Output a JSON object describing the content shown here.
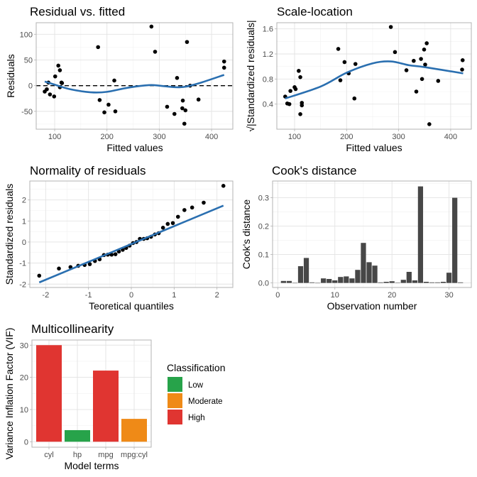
{
  "chart_data": [
    {
      "type": "scatter",
      "title": "Residual vs. fitted",
      "xlabel": "Fitted values",
      "ylabel": "Residuals",
      "xlim": [
        64.7,
        440.6
      ],
      "ylim": [
        -84.7,
        122.5
      ],
      "xticks": [
        100,
        200,
        300,
        400
      ],
      "yticks": [
        -50,
        0,
        50,
        100
      ],
      "grid": true,
      "reference_line": {
        "y": 0,
        "style": "dashed"
      },
      "points": [
        [
          81,
          -11.5
        ],
        [
          85,
          -7
        ],
        [
          88,
          6
        ],
        [
          91,
          -17
        ],
        [
          99,
          -21
        ],
        [
          101,
          18
        ],
        [
          107,
          39
        ],
        [
          110,
          30
        ],
        [
          110,
          -3
        ],
        [
          113,
          6
        ],
        [
          114,
          5
        ],
        [
          183,
          75
        ],
        [
          186,
          -28
        ],
        [
          195,
          -52
        ],
        [
          203,
          -37
        ],
        [
          214,
          10
        ],
        [
          216,
          -50
        ],
        [
          285,
          115
        ],
        [
          292,
          66
        ],
        [
          315,
          -41
        ],
        [
          329,
          -55
        ],
        [
          334,
          15
        ],
        [
          345,
          -29
        ],
        [
          344,
          -44
        ],
        [
          350,
          -48
        ],
        [
          348,
          -74
        ],
        [
          353,
          85
        ],
        [
          359,
          0
        ],
        [
          375,
          -27
        ],
        [
          424,
          35
        ],
        [
          424,
          47
        ]
      ],
      "smooth": [
        [
          81,
          8
        ],
        [
          100,
          2
        ],
        [
          130,
          -7
        ],
        [
          170,
          -13
        ],
        [
          200,
          -12
        ],
        [
          240,
          -4
        ],
        [
          280,
          1
        ],
        [
          300,
          0
        ],
        [
          330,
          -3
        ],
        [
          350,
          -2
        ],
        [
          380,
          6
        ],
        [
          424,
          21
        ]
      ],
      "colors": {
        "points": "#000000",
        "smooth": "#2a6fb0"
      }
    },
    {
      "type": "scatter",
      "title": "Scale-location",
      "xlabel": "Fitted values",
      "ylabel": "√|Standardized residuals|",
      "xlim": [
        65.9,
        439.7
      ],
      "ylim": [
        0.0,
        1.698
      ],
      "xticks": [
        100,
        200,
        300,
        400
      ],
      "yticks": [
        0.4,
        0.8,
        1.2,
        1.6
      ],
      "ytick_labels": [
        "0.4",
        "0.8",
        "1.2",
        "1.6"
      ],
      "grid": true,
      "points": [
        [
          82,
          0.52
        ],
        [
          86,
          0.41
        ],
        [
          90,
          0.4
        ],
        [
          92,
          0.61
        ],
        [
          100,
          0.67
        ],
        [
          102,
          0.64
        ],
        [
          108,
          0.93
        ],
        [
          111,
          0.83
        ],
        [
          111,
          0.24
        ],
        [
          114,
          0.42
        ],
        [
          114,
          0.38
        ],
        [
          184,
          1.28
        ],
        [
          188,
          0.78
        ],
        [
          196,
          1.07
        ],
        [
          204,
          0.89
        ],
        [
          215,
          0.49
        ],
        [
          217,
          1.04
        ],
        [
          285,
          1.63
        ],
        [
          293,
          1.23
        ],
        [
          315,
          0.94
        ],
        [
          329,
          1.09
        ],
        [
          334,
          0.6
        ],
        [
          343,
          1.12
        ],
        [
          345,
          0.8
        ],
        [
          349,
          1.27
        ],
        [
          351,
          1.03
        ],
        [
          354,
          1.37
        ],
        [
          359,
          0.08
        ],
        [
          376,
          0.77
        ],
        [
          423,
          1.1
        ],
        [
          422,
          0.95
        ]
      ],
      "smooth": [
        [
          82,
          0.49
        ],
        [
          150,
          0.68
        ],
        [
          200,
          0.9
        ],
        [
          250,
          1.05
        ],
        [
          285,
          1.08
        ],
        [
          320,
          1.02
        ],
        [
          350,
          0.99
        ],
        [
          424,
          0.89
        ]
      ],
      "colors": {
        "points": "#000000",
        "smooth": "#2a6fb0"
      }
    },
    {
      "type": "scatter",
      "title": "Normality of residuals",
      "xlabel": "Teoretical quantiles",
      "ylabel": "Standardized residuals",
      "xlim": [
        -2.37,
        2.37
      ],
      "ylim": [
        -2.16,
        2.9
      ],
      "xticks": [
        -2,
        -1,
        0,
        1,
        2
      ],
      "yticks": [
        -2,
        -1,
        0,
        1,
        2
      ],
      "grid": true,
      "points": [
        [
          -2.15,
          -1.6
        ],
        [
          -1.69,
          -1.26
        ],
        [
          -1.42,
          -1.19
        ],
        [
          -1.24,
          -1.13
        ],
        [
          -1.09,
          -1.09
        ],
        [
          -0.97,
          -1.05
        ],
        [
          -0.85,
          -0.9
        ],
        [
          -0.74,
          -0.82
        ],
        [
          -0.64,
          -0.62
        ],
        [
          -0.55,
          -0.6
        ],
        [
          -0.46,
          -0.6
        ],
        [
          -0.37,
          -0.58
        ],
        [
          -0.29,
          -0.45
        ],
        [
          -0.2,
          -0.37
        ],
        [
          -0.12,
          -0.28
        ],
        [
          -0.04,
          -0.17
        ],
        [
          0.04,
          -0.05
        ],
        [
          0.12,
          0.0
        ],
        [
          0.2,
          0.15
        ],
        [
          0.29,
          0.15
        ],
        [
          0.37,
          0.18
        ],
        [
          0.46,
          0.25
        ],
        [
          0.55,
          0.36
        ],
        [
          0.64,
          0.42
        ],
        [
          0.74,
          0.68
        ],
        [
          0.85,
          0.86
        ],
        [
          0.97,
          0.9
        ],
        [
          1.09,
          1.2
        ],
        [
          1.24,
          1.52
        ],
        [
          1.42,
          1.64
        ],
        [
          1.69,
          1.87
        ],
        [
          2.15,
          2.67
        ]
      ],
      "reference_line": {
        "from": [
          -2.15,
          -1.92
        ],
        "to": [
          2.15,
          1.73
        ]
      },
      "colors": {
        "points": "#000000",
        "line": "#2a6fb0"
      }
    },
    {
      "type": "bar",
      "title": "Cook's distance",
      "xlabel": "Observation number",
      "ylabel": "Cook's distance",
      "xlim": [
        -0.91,
        33.9
      ],
      "ylim": [
        -0.016,
        0.359
      ],
      "xticks": [
        0,
        10,
        20,
        30
      ],
      "yticks": [
        0.0,
        0.1,
        0.2,
        0.3
      ],
      "ytick_labels": [
        "0.0",
        "0.1",
        "0.2",
        "0.3"
      ],
      "grid": true,
      "x": [
        1,
        2,
        3,
        4,
        5,
        6,
        7,
        8,
        9,
        10,
        11,
        12,
        13,
        14,
        15,
        16,
        17,
        18,
        19,
        20,
        21,
        22,
        23,
        24,
        25,
        26,
        27,
        28,
        29,
        30,
        31,
        32
      ],
      "values": [
        0.007,
        0.007,
        0,
        0.059,
        0.088,
        0.002,
        0,
        0.016,
        0.014,
        0.009,
        0.021,
        0.023,
        0.016,
        0.046,
        0.141,
        0.073,
        0.061,
        0.002,
        0.004,
        0.006,
        0.001,
        0.011,
        0.039,
        0.009,
        0.34,
        0.004,
        0.002,
        0.002,
        0.004,
        0.036,
        0.3,
        0.002
      ],
      "colors": {
        "bars": "#474747"
      }
    },
    {
      "type": "bar",
      "title": "Multicollinearity",
      "xlabel": "Model terms",
      "ylabel": "Variance Inflation Factor (VIF)",
      "ylim": [
        -1.7,
        31.6
      ],
      "yticks": [
        0,
        10,
        20,
        30
      ],
      "grid": true,
      "categories": [
        "cyl",
        "hp",
        "mpg",
        "mpg:cyl"
      ],
      "values": [
        30.0,
        3.6,
        22.1,
        7.1
      ],
      "classification": [
        "High",
        "Low",
        "High",
        "Moderate"
      ],
      "legend": {
        "title": "Classification",
        "position": "right",
        "entries": [
          {
            "label": "Low",
            "color": "#27a34a"
          },
          {
            "label": "Moderate",
            "color": "#ef8a17"
          },
          {
            "label": "High",
            "color": "#e03531"
          }
        ]
      }
    }
  ]
}
